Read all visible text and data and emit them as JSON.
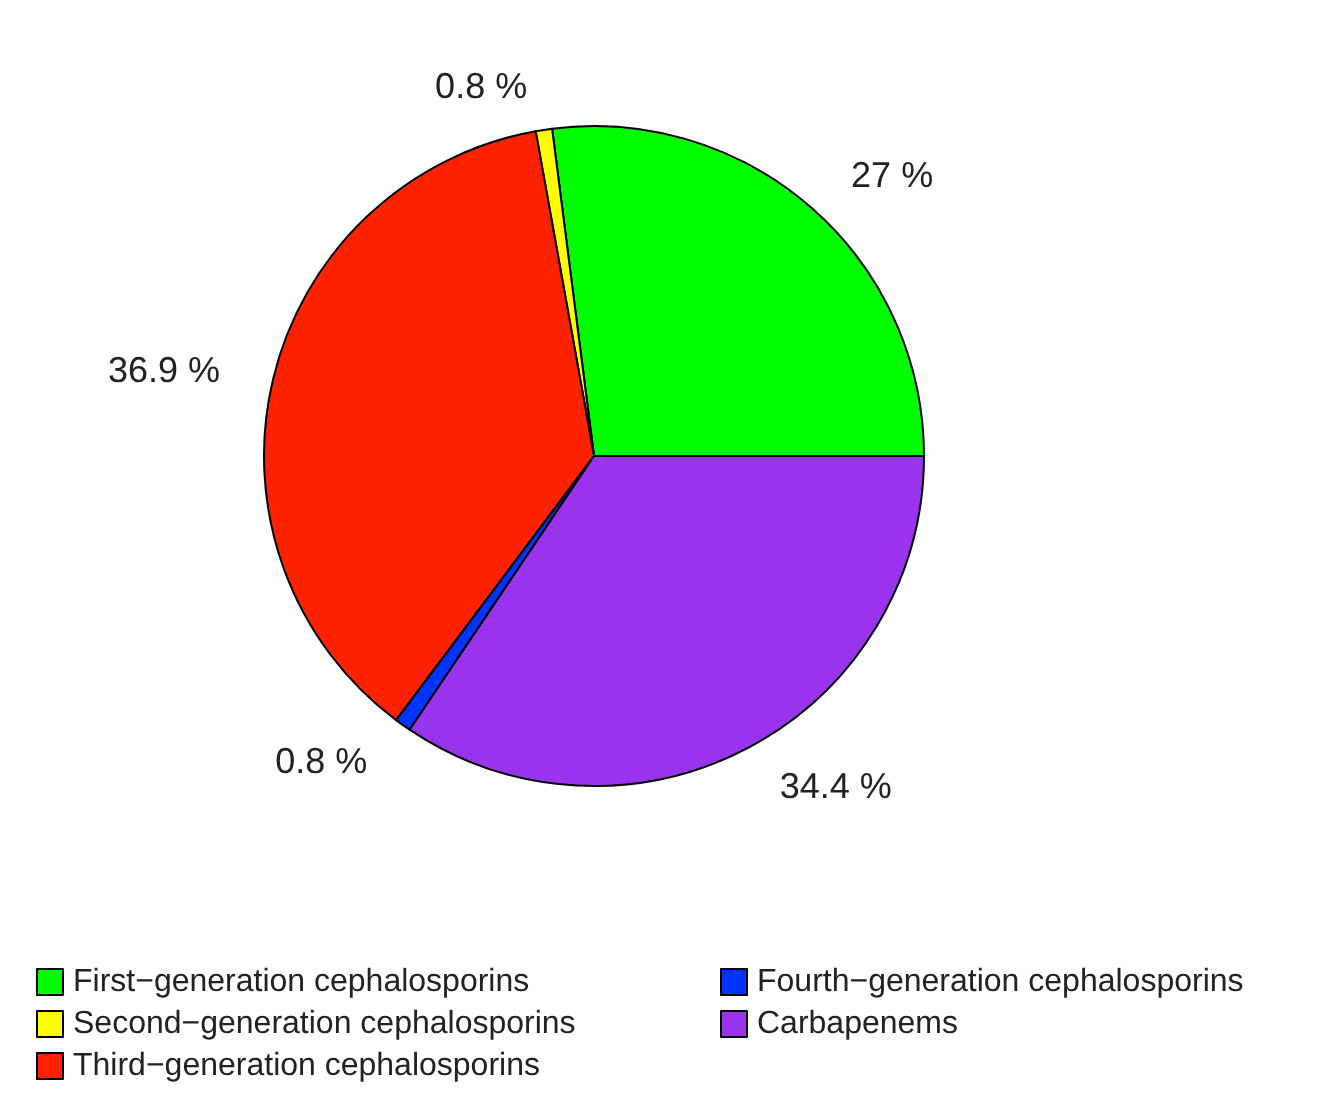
{
  "chart_data": {
    "type": "pie",
    "categories": [
      "First−generation cephalosporins",
      "Second−generation cephalosporins",
      "Third−generation cephalosporins",
      "Fourth−generation cephalosporins",
      "Carbapenems"
    ],
    "values": [
      27,
      0.8,
      36.9,
      0.8,
      34.4
    ],
    "value_labels": [
      "27 %",
      "0.8 %",
      "36.9 %",
      "0.8 %",
      "34.4 %"
    ],
    "colors": [
      "#00ff00",
      "#ffff00",
      "#ff2200",
      "#0033ff",
      "#9933ee"
    ],
    "legend": "bottom"
  }
}
